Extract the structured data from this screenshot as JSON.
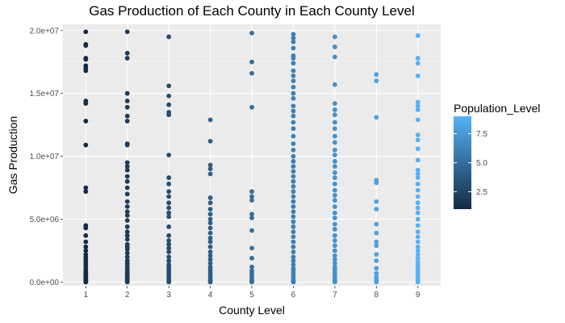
{
  "chart_data": {
    "type": "scatter",
    "title": "Gas Production of Each County in Each County Level",
    "xlabel": "County Level",
    "ylabel": "Gas Production",
    "x_ticks": [
      1,
      2,
      3,
      4,
      5,
      6,
      7,
      8,
      9
    ],
    "x_tick_labels": [
      "1",
      "2",
      "3",
      "4",
      "5",
      "6",
      "7",
      "8",
      "9"
    ],
    "xlim": [
      0.45,
      9.55
    ],
    "y_ticks": [
      0,
      5000000,
      10000000,
      15000000,
      20000000
    ],
    "y_tick_labels": [
      "0.0e+00",
      "5.0e+06",
      "1.0e+07",
      "1.5e+07",
      "2.0e+07"
    ],
    "ylim": [
      -300000,
      20500000
    ],
    "grid": true,
    "legend": {
      "title": "Population_Level",
      "type": "colorbar",
      "placement": "right",
      "ticks": [
        2.5,
        5.0,
        7.5
      ],
      "tick_labels": [
        "2.5",
        "5.0",
        "7.5"
      ],
      "range": [
        1,
        9
      ],
      "low_color": "#132b43",
      "high_color": "#56b1f7"
    },
    "series": [
      {
        "x": 1,
        "color_value": 1,
        "y": [
          19900000,
          18900000,
          18800000,
          17800000,
          17700000,
          17200000,
          17000000,
          16800000,
          14400000,
          14200000,
          12800000,
          10900000,
          7500000,
          7200000,
          4500000,
          4300000,
          3700000,
          3200000,
          2800000,
          2500000,
          2200000,
          2000000,
          1800000,
          1600000,
          1400000,
          1200000,
          1000000,
          900000,
          800000,
          700000,
          600000,
          500000,
          400000,
          300000,
          200000,
          150000,
          100000,
          50000,
          20000,
          0
        ]
      },
      {
        "x": 2,
        "color_value": 2,
        "y": [
          19900000,
          18200000,
          17800000,
          15000000,
          14400000,
          13900000,
          13200000,
          12800000,
          11000000,
          10900000,
          9500000,
          9200000,
          8900000,
          8400000,
          8000000,
          7500000,
          7000000,
          6400000,
          6000000,
          5600000,
          5300000,
          4900000,
          4400000,
          4000000,
          3700000,
          3400000,
          3000000,
          2800000,
          2600000,
          2300000,
          2000000,
          1700000,
          1500000,
          1300000,
          1100000,
          900000,
          800000,
          700000,
          600000,
          500000,
          400000,
          300000,
          200000,
          100000,
          50000,
          0
        ]
      },
      {
        "x": 3,
        "color_value": 3,
        "y": [
          19500000,
          15600000,
          14800000,
          14100000,
          13500000,
          13300000,
          10100000,
          8300000,
          7800000,
          7200000,
          6800000,
          6300000,
          5900000,
          5500000,
          5200000,
          4400000,
          3700000,
          3300000,
          3000000,
          2700000,
          2400000,
          2000000,
          1700000,
          1400000,
          1200000,
          1000000,
          800000,
          600000,
          400000,
          250000,
          100000,
          0
        ]
      },
      {
        "x": 4,
        "color_value": 4,
        "y": [
          12900000,
          11200000,
          9300000,
          9000000,
          8600000,
          6700000,
          6300000,
          5800000,
          5400000,
          5000000,
          4700000,
          4300000,
          3900000,
          3500000,
          3200000,
          2800000,
          2400000,
          2100000,
          1800000,
          1500000,
          1200000,
          1000000,
          800000,
          600000,
          400000,
          200000,
          100000,
          0
        ]
      },
      {
        "x": 5,
        "color_value": 5,
        "y": [
          19800000,
          17500000,
          16600000,
          13900000,
          7200000,
          6800000,
          6500000,
          5400000,
          5100000,
          4100000,
          2700000,
          1900000,
          1200000,
          900000,
          700000,
          500000,
          300000,
          150000,
          50000,
          0
        ]
      },
      {
        "x": 6,
        "color_value": 6,
        "y": [
          19700000,
          19400000,
          19100000,
          18600000,
          18000000,
          17800000,
          17400000,
          16800000,
          16400000,
          16000000,
          15500000,
          15000000,
          14600000,
          14000000,
          13600000,
          13200000,
          12700000,
          12200000,
          11600000,
          11000000,
          10500000,
          10000000,
          9600000,
          9200000,
          8800000,
          8400000,
          8000000,
          7600000,
          7200000,
          6800000,
          6400000,
          6000000,
          5600000,
          5200000,
          4800000,
          4400000,
          4000000,
          3600000,
          3200000,
          2800000,
          2400000,
          2000000,
          1700000,
          1400000,
          1100000,
          900000,
          700000,
          500000,
          300000,
          150000,
          50000,
          0
        ]
      },
      {
        "x": 7,
        "color_value": 7,
        "y": [
          19500000,
          18700000,
          17900000,
          15700000,
          14200000,
          13700000,
          13300000,
          12700000,
          12200000,
          11600000,
          11100000,
          10500000,
          10100000,
          9600000,
          9200000,
          8700000,
          8300000,
          7800000,
          7300000,
          6900000,
          6500000,
          6000000,
          5500000,
          5100000,
          4600000,
          4200000,
          3700000,
          3300000,
          2900000,
          2500000,
          2100000,
          1800000,
          1500000,
          1200000,
          1000000,
          800000,
          600000,
          400000,
          200000,
          100000,
          0
        ]
      },
      {
        "x": 8,
        "color_value": 8,
        "y": [
          16500000,
          16000000,
          13100000,
          8100000,
          7900000,
          6400000,
          5800000,
          4600000,
          3900000,
          3200000,
          2900000,
          2200000,
          1700000,
          1100000,
          700000,
          400000,
          200000,
          50000,
          0
        ]
      },
      {
        "x": 9,
        "color_value": 9,
        "y": [
          19600000,
          17800000,
          17400000,
          16400000,
          14300000,
          14000000,
          13700000,
          12900000,
          11700000,
          11300000,
          10600000,
          9700000,
          8900000,
          8600000,
          8300000,
          7800000,
          7300000,
          6800000,
          6300000,
          5900000,
          5500000,
          5000000,
          4500000,
          4000000,
          3600000,
          3200000,
          2800000,
          2500000,
          2200000,
          1900000,
          1600000,
          1400000,
          1200000,
          1000000,
          800000,
          600000,
          400000,
          250000,
          100000,
          0
        ]
      }
    ]
  }
}
